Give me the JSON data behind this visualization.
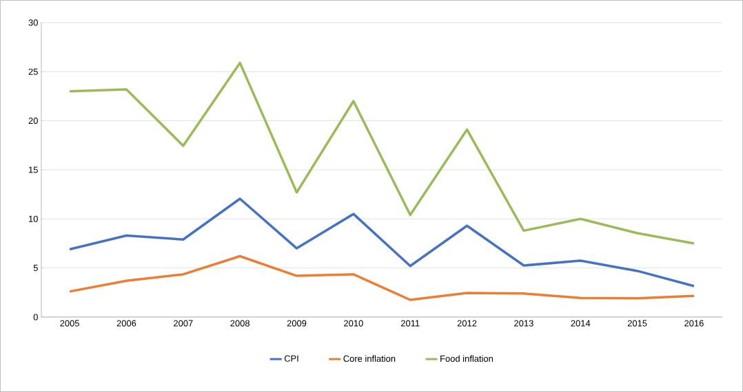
{
  "chart_data": {
    "type": "line",
    "categories": [
      "2005",
      "2006",
      "2007",
      "2008",
      "2009",
      "2010",
      "2011",
      "2012",
      "2013",
      "2014",
      "2015",
      "2016"
    ],
    "series": [
      {
        "name": "CPI",
        "color": "#4472c4",
        "values": [
          6.9,
          8.3,
          7.9,
          12.05,
          7.0,
          10.5,
          5.2,
          9.3,
          5.25,
          5.75,
          4.7,
          3.15
        ]
      },
      {
        "name": "Core inflation",
        "color": "#ed7d31",
        "values": [
          2.6,
          3.7,
          4.35,
          6.2,
          4.2,
          4.35,
          1.75,
          2.45,
          2.4,
          1.95,
          1.9,
          2.15
        ]
      },
      {
        "name": "Food inflation",
        "color": "#9bbb59",
        "values": [
          23.0,
          23.2,
          17.45,
          25.9,
          12.7,
          22.0,
          10.4,
          19.1,
          8.8,
          10.0,
          8.55,
          7.5
        ]
      }
    ],
    "ylim": [
      0,
      30
    ],
    "yticks": [
      0,
      5,
      10,
      15,
      20,
      25,
      30
    ],
    "grid": "y",
    "legend": "bottom",
    "marker": "none",
    "line_style": "solid"
  }
}
